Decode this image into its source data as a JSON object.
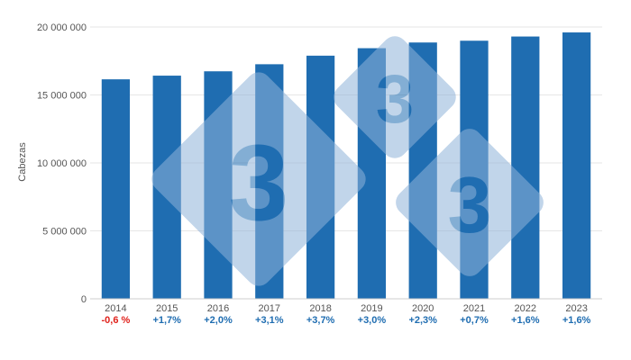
{
  "colors": {
    "bar": "#1f6db1",
    "grid": "#e6e6e6",
    "axis": "#cccccc",
    "positive": "#1f6db1",
    "negative": "#e0211b",
    "watermark": "#8fb3d9"
  },
  "watermark": {
    "icon": "logo-watermark",
    "glyph": "3"
  },
  "chart_data": {
    "type": "bar",
    "ylabel": "Cabezas",
    "ylim": [
      0,
      20000000
    ],
    "yticks": [
      0,
      5000000,
      10000000,
      15000000,
      20000000
    ],
    "ytick_labels": [
      "0",
      "5 000 000",
      "10 000 000",
      "15 000 000",
      "20 000 000"
    ],
    "grid": true,
    "categories": [
      "2014",
      "2015",
      "2016",
      "2017",
      "2018",
      "2019",
      "2020",
      "2021",
      "2022",
      "2023"
    ],
    "values": [
      16150000,
      16420000,
      16740000,
      17260000,
      17890000,
      18440000,
      18860000,
      18990000,
      19300000,
      19600000
    ],
    "changes": [
      "-0,6 %",
      "+1,7%",
      "+2,0%",
      "+3,1%",
      "+3,7%",
      "+3,0%",
      "+2,3%",
      "+0,7%",
      "+1,6%",
      "+1,6%"
    ]
  }
}
